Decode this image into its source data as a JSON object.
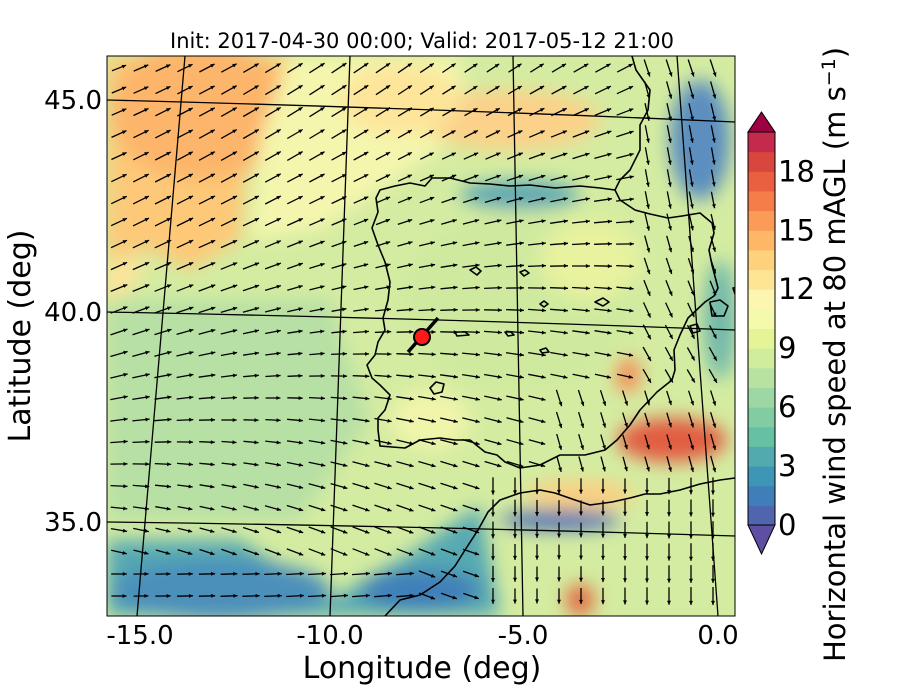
{
  "figure": {
    "title": "Init: 2017-04-30 00:00; Valid: 2017-05-12 21:00",
    "xlabel": "Longitude (deg)",
    "ylabel": "Latitude (deg)",
    "colorbar_label": "Horizontal wind speed at 80 mAGL (m s$^{-1}$)",
    "colorbar_label_main": "Horizontal wind speed at 80 mAGL (m s",
    "colorbar_label_exp": "−1",
    "colorbar_label_close": ")"
  },
  "map": {
    "region": "Iberian Peninsula and surrounding seas",
    "lon_range": [
      -16.0,
      0.3
    ],
    "lat_range": [
      32.8,
      46.3
    ],
    "lon_ticks": [
      "-15.0",
      "-10.0",
      "-5.0",
      "0.0"
    ],
    "lat_ticks": [
      "35.0",
      "40.0",
      "45.0"
    ],
    "grid": true,
    "marker": {
      "lon": -7.6,
      "lat": 39.3,
      "color": "#ff0000",
      "label": "site marker (red circle with barb)"
    }
  },
  "colorbar": {
    "min": 0,
    "max": 20,
    "step": 1,
    "ticks": [
      "0",
      "3",
      "6",
      "9",
      "12",
      "15",
      "18"
    ],
    "extend": "both",
    "colormap": "Spectral_r",
    "colors": [
      "#5e4fa2",
      "#4f66ae",
      "#3f7fb9",
      "#3e96b7",
      "#52aaae",
      "#66c0a4",
      "#82cca4",
      "#9dd7a4",
      "#b8e2a2",
      "#d0ec9d",
      "#e6f498",
      "#f4f9ac",
      "#fdf6b0",
      "#fee593",
      "#fed27d",
      "#fdb767",
      "#fa9b58",
      "#f57d4a",
      "#e8603f",
      "#d8463d",
      "#c32a4b",
      "#9e0142"
    ]
  },
  "chart_data": {
    "type": "heatmap",
    "title": "Init: 2017-04-30 00:00; Valid: 2017-05-12 21:00",
    "xlabel": "Longitude (deg)",
    "ylabel": "Latitude (deg)",
    "xlim": [
      -16.0,
      0.3
    ],
    "ylim": [
      32.8,
      46.3
    ],
    "colorbar_range": [
      0,
      20
    ],
    "field": "Horizontal wind speed at 80 mAGL (m s^-1)",
    "vectors": "wind direction arrows"
  }
}
